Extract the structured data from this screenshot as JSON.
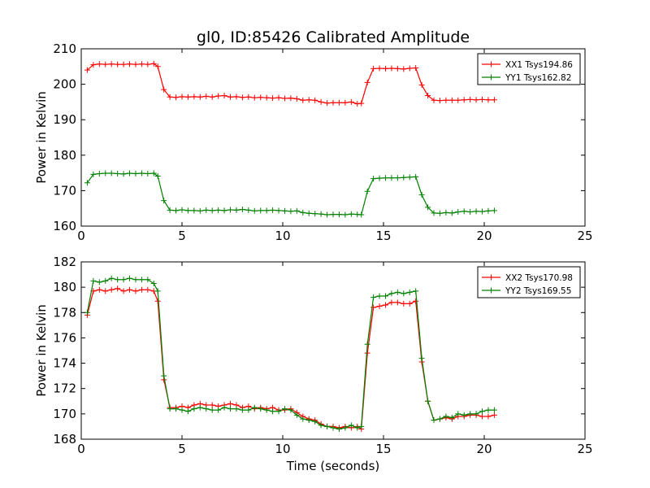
{
  "figure": {
    "title": "gl0, ID:85426 Calibrated Amplitude",
    "xlabel": "Time (seconds)"
  },
  "chart_data": [
    {
      "type": "line",
      "title": "gl0, ID:85426 Calibrated Amplitude",
      "xlabel": "",
      "ylabel": "Power in Kelvin",
      "xlim": [
        0,
        25
      ],
      "ylim": [
        160,
        210
      ],
      "xticks": [
        0,
        5,
        10,
        15,
        20,
        25
      ],
      "yticks": [
        160,
        170,
        180,
        190,
        200,
        210
      ],
      "grid": false,
      "legend_position": "top-right",
      "series": [
        {
          "name": "XX1 Tsys194.86",
          "color": "#ff0000",
          "marker": "+",
          "x": [
            0.3,
            0.6,
            0.9,
            1.2,
            1.5,
            1.8,
            2.1,
            2.4,
            2.7,
            3.0,
            3.3,
            3.6,
            3.8,
            4.1,
            4.4,
            4.7,
            5.0,
            5.3,
            5.6,
            5.9,
            6.2,
            6.5,
            6.8,
            7.1,
            7.4,
            7.7,
            8.0,
            8.3,
            8.6,
            8.9,
            9.2,
            9.5,
            9.8,
            10.1,
            10.4,
            10.7,
            11.0,
            11.3,
            11.6,
            11.9,
            12.2,
            12.5,
            12.8,
            13.1,
            13.4,
            13.7,
            13.9,
            14.2,
            14.5,
            14.8,
            15.1,
            15.4,
            15.7,
            16.0,
            16.3,
            16.6,
            16.9,
            17.2,
            17.5,
            17.8,
            18.1,
            18.4,
            18.7,
            19.0,
            19.3,
            19.6,
            19.9,
            20.2,
            20.5
          ],
          "y": [
            204,
            205.5,
            205.7,
            205.6,
            205.7,
            205.6,
            205.6,
            205.7,
            205.6,
            205.7,
            205.6,
            205.8,
            205,
            198.5,
            196.4,
            196.3,
            196.5,
            196.4,
            196.5,
            196.4,
            196.6,
            196.4,
            196.7,
            196.8,
            196.4,
            196.5,
            196.3,
            196.4,
            196.2,
            196.3,
            196.2,
            196.1,
            196.2,
            196.0,
            196.1,
            195.9,
            195.5,
            195.6,
            195.5,
            195.0,
            194.7,
            194.8,
            194.8,
            194.8,
            195.0,
            194.5,
            194.6,
            200.5,
            204.4,
            204.5,
            204.4,
            204.5,
            204.4,
            204.3,
            204.5,
            204.6,
            199.8,
            196.8,
            195.5,
            195.4,
            195.5,
            195.5,
            195.5,
            195.6,
            195.7,
            195.6,
            195.7,
            195.6,
            195.6
          ]
        },
        {
          "name": "YY1 Tsys162.82",
          "color": "#008000",
          "marker": "+",
          "x": [
            0.3,
            0.6,
            0.9,
            1.2,
            1.5,
            1.8,
            2.1,
            2.4,
            2.7,
            3.0,
            3.3,
            3.6,
            3.8,
            4.1,
            4.4,
            4.7,
            5.0,
            5.3,
            5.6,
            5.9,
            6.2,
            6.5,
            6.8,
            7.1,
            7.4,
            7.7,
            8.0,
            8.3,
            8.6,
            8.9,
            9.2,
            9.5,
            9.8,
            10.1,
            10.4,
            10.7,
            11.0,
            11.3,
            11.6,
            11.9,
            12.2,
            12.5,
            12.8,
            13.1,
            13.4,
            13.7,
            13.9,
            14.2,
            14.5,
            14.8,
            15.1,
            15.4,
            15.7,
            16.0,
            16.3,
            16.6,
            16.9,
            17.2,
            17.5,
            17.8,
            18.1,
            18.4,
            18.7,
            19.0,
            19.3,
            19.6,
            19.9,
            20.2,
            20.5
          ],
          "y": [
            172.2,
            174.6,
            174.8,
            174.9,
            174.9,
            174.8,
            174.7,
            174.9,
            174.8,
            174.9,
            174.8,
            174.9,
            174.1,
            167.2,
            164.5,
            164.4,
            164.6,
            164.4,
            164.4,
            164.3,
            164.5,
            164.4,
            164.5,
            164.4,
            164.6,
            164.5,
            164.7,
            164.5,
            164.3,
            164.4,
            164.4,
            164.5,
            164.4,
            164.3,
            164.2,
            164.3,
            163.8,
            163.6,
            163.5,
            163.4,
            163.2,
            163.3,
            163.3,
            163.2,
            163.4,
            163.3,
            163.2,
            169.8,
            173.4,
            173.5,
            173.6,
            173.6,
            173.6,
            173.7,
            173.8,
            173.9,
            168.8,
            165.3,
            163.7,
            163.6,
            163.8,
            163.7,
            164.0,
            164.2,
            164.0,
            164.2,
            164.1,
            164.3,
            164.4
          ]
        }
      ]
    },
    {
      "type": "line",
      "title": "",
      "xlabel": "Time (seconds)",
      "ylabel": "Power in Kelvin",
      "xlim": [
        0,
        25
      ],
      "ylim": [
        168,
        182
      ],
      "xticks": [
        0,
        5,
        10,
        15,
        20,
        25
      ],
      "yticks": [
        168,
        170,
        172,
        174,
        176,
        178,
        180,
        182
      ],
      "grid": false,
      "legend_position": "top-right",
      "series": [
        {
          "name": "XX2 Tsys170.98",
          "color": "#ff0000",
          "marker": "+",
          "x": [
            0.3,
            0.6,
            0.9,
            1.2,
            1.5,
            1.8,
            2.1,
            2.4,
            2.7,
            3.0,
            3.3,
            3.6,
            3.8,
            4.1,
            4.4,
            4.7,
            5.0,
            5.3,
            5.6,
            5.9,
            6.2,
            6.5,
            6.8,
            7.1,
            7.4,
            7.7,
            8.0,
            8.3,
            8.6,
            8.9,
            9.2,
            9.5,
            9.8,
            10.1,
            10.4,
            10.7,
            11.0,
            11.3,
            11.6,
            11.9,
            12.2,
            12.5,
            12.8,
            13.1,
            13.4,
            13.7,
            13.9,
            14.2,
            14.5,
            14.8,
            15.1,
            15.4,
            15.7,
            16.0,
            16.3,
            16.6,
            16.9,
            17.2,
            17.5,
            17.8,
            18.1,
            18.4,
            18.7,
            19.0,
            19.3,
            19.6,
            19.9,
            20.2,
            20.5
          ],
          "y": [
            177.8,
            179.7,
            179.8,
            179.7,
            179.8,
            179.9,
            179.7,
            179.8,
            179.7,
            179.8,
            179.8,
            179.7,
            178.9,
            172.7,
            170.5,
            170.5,
            170.6,
            170.5,
            170.7,
            170.8,
            170.7,
            170.7,
            170.6,
            170.7,
            170.8,
            170.7,
            170.5,
            170.6,
            170.4,
            170.5,
            170.4,
            170.5,
            170.3,
            170.3,
            170.4,
            170.1,
            169.8,
            169.6,
            169.5,
            169.2,
            169.0,
            169.0,
            168.9,
            169.0,
            168.9,
            169.0,
            168.8,
            174.8,
            178.4,
            178.5,
            178.6,
            178.8,
            178.8,
            178.7,
            178.7,
            178.9,
            174.1,
            171.0,
            169.5,
            169.6,
            169.7,
            169.6,
            169.8,
            169.8,
            169.9,
            169.9,
            169.8,
            169.8,
            169.9
          ]
        },
        {
          "name": "YY2 Tsys169.55",
          "color": "#008000",
          "marker": "+",
          "x": [
            0.3,
            0.6,
            0.9,
            1.2,
            1.5,
            1.8,
            2.1,
            2.4,
            2.7,
            3.0,
            3.3,
            3.6,
            3.8,
            4.1,
            4.4,
            4.7,
            5.0,
            5.3,
            5.6,
            5.9,
            6.2,
            6.5,
            6.8,
            7.1,
            7.4,
            7.7,
            8.0,
            8.3,
            8.6,
            8.9,
            9.2,
            9.5,
            9.8,
            10.1,
            10.4,
            10.7,
            11.0,
            11.3,
            11.6,
            11.9,
            12.2,
            12.5,
            12.8,
            13.1,
            13.4,
            13.7,
            13.9,
            14.2,
            14.5,
            14.8,
            15.1,
            15.4,
            15.7,
            16.0,
            16.3,
            16.6,
            16.9,
            17.2,
            17.5,
            17.8,
            18.1,
            18.4,
            18.7,
            19.0,
            19.3,
            19.6,
            19.9,
            20.2,
            20.5
          ],
          "y": [
            178.0,
            180.5,
            180.4,
            180.5,
            180.7,
            180.6,
            180.6,
            180.7,
            180.6,
            180.6,
            180.6,
            180.3,
            179.7,
            173.0,
            170.4,
            170.4,
            170.3,
            170.2,
            170.4,
            170.5,
            170.4,
            170.3,
            170.3,
            170.5,
            170.4,
            170.4,
            170.3,
            170.3,
            170.5,
            170.4,
            170.3,
            170.2,
            170.2,
            170.4,
            170.3,
            169.9,
            169.6,
            169.5,
            169.4,
            169.1,
            169.0,
            168.9,
            168.8,
            168.9,
            169.1,
            168.9,
            169.0,
            175.5,
            179.2,
            179.3,
            179.3,
            179.5,
            179.6,
            179.5,
            179.6,
            179.7,
            174.4,
            171.0,
            169.5,
            169.6,
            169.8,
            169.7,
            170.0,
            169.9,
            170.0,
            170.0,
            170.2,
            170.3,
            170.3
          ]
        }
      ]
    }
  ]
}
